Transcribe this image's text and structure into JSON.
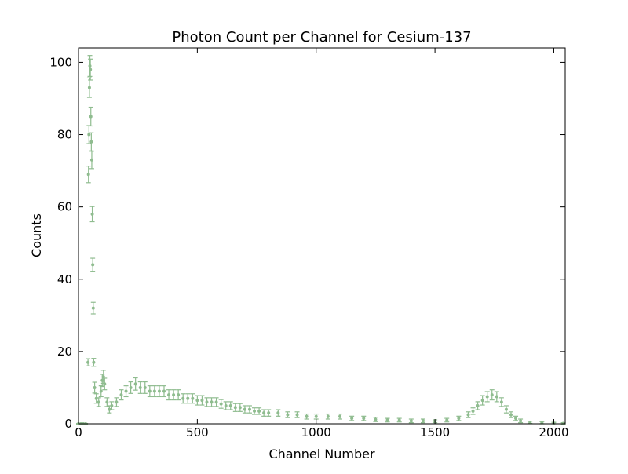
{
  "chart_data": {
    "type": "errorbar",
    "title": "Photon Count per Channel for Cesium-137",
    "x_label": "Channel Number",
    "y_label": "Counts",
    "x": [
      0,
      10,
      20,
      30,
      40,
      42,
      44,
      46,
      48,
      50,
      52,
      54,
      56,
      58,
      60,
      62,
      64,
      68,
      75,
      85,
      95,
      100,
      105,
      110,
      120,
      130,
      140,
      160,
      180,
      200,
      220,
      240,
      260,
      280,
      300,
      320,
      340,
      360,
      380,
      400,
      420,
      440,
      460,
      480,
      500,
      520,
      540,
      560,
      580,
      600,
      620,
      640,
      660,
      680,
      700,
      720,
      740,
      760,
      780,
      800,
      840,
      880,
      920,
      960,
      1000,
      1050,
      1100,
      1150,
      1200,
      1250,
      1300,
      1350,
      1400,
      1450,
      1500,
      1550,
      1600,
      1640,
      1660,
      1680,
      1700,
      1720,
      1740,
      1760,
      1780,
      1800,
      1820,
      1840,
      1860,
      1900,
      1950,
      2000,
      2040
    ],
    "values": [
      0,
      0,
      0,
      0,
      17,
      69,
      80,
      93,
      99,
      98,
      85,
      78,
      73,
      58,
      44,
      32,
      17,
      10,
      7,
      6,
      9,
      12,
      13,
      11,
      6,
      4,
      5,
      6,
      8,
      9,
      10,
      11,
      10,
      10,
      9,
      9,
      9,
      9,
      8,
      8,
      8,
      7,
      7,
      7,
      6.5,
      6.5,
      6,
      6,
      6,
      5.5,
      5,
      5,
      4.5,
      4.5,
      4,
      4,
      3.5,
      3.5,
      3,
      3,
      3,
      2.5,
      2.5,
      2,
      2,
      2,
      2,
      1.5,
      1.5,
      1.2,
      1,
      1,
      0.8,
      0.8,
      0.7,
      1,
      1.5,
      2.5,
      3.5,
      5,
      6.5,
      7.5,
      8,
      7.5,
      6,
      4,
      2.5,
      1.5,
      0.8,
      0.4,
      0.3,
      0.2,
      0.1
    ],
    "errors": [
      0.1,
      0.1,
      0.1,
      0.1,
      1,
      2.3,
      2.5,
      2.7,
      2.9,
      2.9,
      2.6,
      2.5,
      2.4,
      2.1,
      1.8,
      1.6,
      1.1,
      1.5,
      1.3,
      1.2,
      1.5,
      1.7,
      1.8,
      1.6,
      1.2,
      1,
      1.1,
      1.2,
      1.4,
      1.5,
      1.6,
      1.7,
      1.6,
      1.6,
      1.5,
      1.5,
      1.5,
      1.5,
      1.4,
      1.4,
      1.4,
      1.3,
      1.3,
      1.3,
      1.3,
      1.3,
      1.2,
      1.2,
      1.2,
      1.2,
      1.1,
      1.1,
      1.1,
      1.1,
      1,
      1,
      0.9,
      0.9,
      0.9,
      0.9,
      0.9,
      0.8,
      0.8,
      0.7,
      0.7,
      0.7,
      0.7,
      0.6,
      0.6,
      0.6,
      0.5,
      0.5,
      0.5,
      0.5,
      0.4,
      0.5,
      0.6,
      0.8,
      0.9,
      1.1,
      1.3,
      1.4,
      1.4,
      1.4,
      1.2,
      1,
      0.8,
      0.6,
      0.5,
      0.3,
      0.3,
      0.2,
      0.2
    ],
    "color": "#8fbc8f",
    "xlim": [
      0,
      2048
    ],
    "ylim": [
      0,
      104
    ],
    "xticks": [
      0,
      500,
      1000,
      1500,
      2000
    ],
    "yticks": [
      0,
      20,
      40,
      60,
      80,
      100
    ]
  }
}
